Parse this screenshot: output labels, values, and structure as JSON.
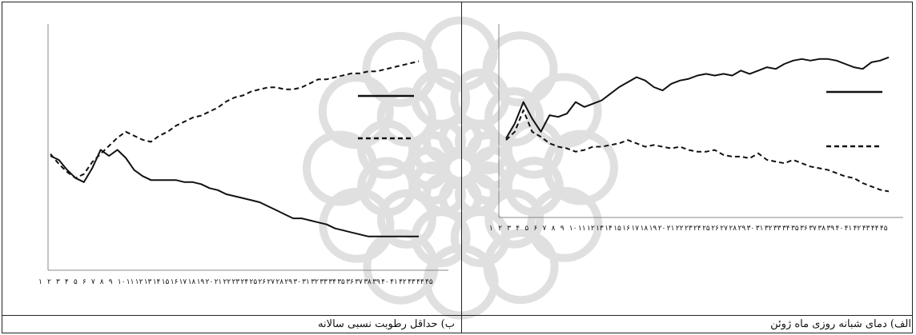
{
  "captions": {
    "right": "الف) دمای شبانه روزی ماه ژوئن",
    "left": "ب) حداقل رطوبت نسبی سالانه"
  },
  "colors": {
    "line": "#111111",
    "axis": "#888888",
    "watermark": "#d6d6d6"
  },
  "chart_data": [
    {
      "type": "line",
      "position": "right",
      "title": "",
      "xlabel": "",
      "ylabel": "",
      "ylim": [
        0,
        100
      ],
      "grid": false,
      "legend": "top-right",
      "x_ticks": [
        "۱",
        "۲",
        "۳",
        "۴",
        "۵",
        "۶",
        "۷",
        "۸",
        "۹",
        "۱۰",
        "۱۱",
        "۱۲",
        "۱۳",
        "۱۴",
        "۱۵",
        "۱۶",
        "۱۷",
        "۱۸",
        "۱۹",
        "۲۰",
        "۲۱",
        "۲۲",
        "۲۳",
        "۲۴",
        "۲۵",
        "۲۶",
        "۲۷",
        "۲۸",
        "۲۹",
        "۳۰",
        "۳۱",
        "۳۲",
        "۳۳",
        "۳۴",
        "۳۵",
        "۳۶",
        "۳۷",
        "۳۸",
        "۳۹",
        "۴۰",
        "۴۱",
        "۴۲",
        "۴۳",
        "۴۴",
        "۴۵"
      ],
      "series": [
        {
          "style": "solid",
          "values": [
            41,
            50,
            63,
            53,
            45,
            55,
            54,
            56,
            63,
            60,
            62,
            64,
            68,
            72,
            75,
            78,
            76,
            72,
            70,
            74,
            76,
            77,
            79,
            80,
            79,
            80,
            79,
            82,
            80,
            82,
            84,
            83,
            86,
            88,
            89,
            88,
            89,
            89,
            88,
            86,
            84,
            83,
            87,
            88,
            90
          ]
        },
        {
          "style": "dashed",
          "values": [
            40,
            45,
            58,
            45,
            42,
            38,
            36,
            35,
            33,
            34,
            36,
            36,
            37,
            38,
            40,
            38,
            36,
            37,
            36,
            35,
            36,
            34,
            33,
            33,
            34,
            31,
            30,
            30,
            29,
            32,
            28,
            27,
            26,
            28,
            26,
            24,
            23,
            22,
            20,
            18,
            17,
            14,
            12,
            10,
            9
          ]
        }
      ]
    },
    {
      "type": "line",
      "position": "left",
      "title": "",
      "xlabel": "",
      "ylabel": "",
      "ylim": [
        0,
        100
      ],
      "grid": false,
      "legend": "top-right",
      "x_ticks": [
        "۱",
        "۲",
        "۳",
        "۴",
        "۵",
        "۶",
        "۷",
        "۸",
        "۹",
        "۱۰",
        "۱۱",
        "۱۲",
        "۱۳",
        "۱۴",
        "۱۵",
        "۱۶",
        "۱۷",
        "۱۸",
        "۱۹",
        "۲۰",
        "۲۱",
        "۲۲",
        "۲۳",
        "۲۴",
        "۲۵",
        "۲۶",
        "۲۷",
        "۲۸",
        "۲۹",
        "۳۰",
        "۳۱",
        "۳۲",
        "۳۳",
        "۳۴",
        "۳۵",
        "۳۶",
        "۳۷",
        "۳۸",
        "۳۹",
        "۴۰",
        "۴۱",
        "۴۲",
        "۴۳",
        "۴۴",
        "۴۵"
      ],
      "series": [
        {
          "style": "solid",
          "values": [
            50,
            48,
            43,
            39,
            37,
            44,
            53,
            50,
            53,
            49,
            43,
            40,
            38,
            38,
            38,
            38,
            37,
            37,
            36,
            34,
            33,
            31,
            30,
            29,
            28,
            27,
            25,
            23,
            21,
            19,
            19,
            18,
            17,
            16,
            14,
            13,
            12,
            11,
            10,
            10,
            10,
            10,
            10,
            10,
            10
          ]
        },
        {
          "style": "dashed",
          "values": [
            51,
            46,
            42,
            39,
            41,
            47,
            51,
            55,
            59,
            62,
            60,
            58,
            57,
            60,
            62,
            65,
            67,
            69,
            70,
            72,
            74,
            77,
            79,
            80,
            82,
            83,
            84,
            84,
            83,
            83,
            84,
            86,
            88,
            88,
            89,
            90,
            91,
            91,
            92,
            92,
            93,
            94,
            95,
            96,
            97
          ]
        }
      ]
    }
  ]
}
